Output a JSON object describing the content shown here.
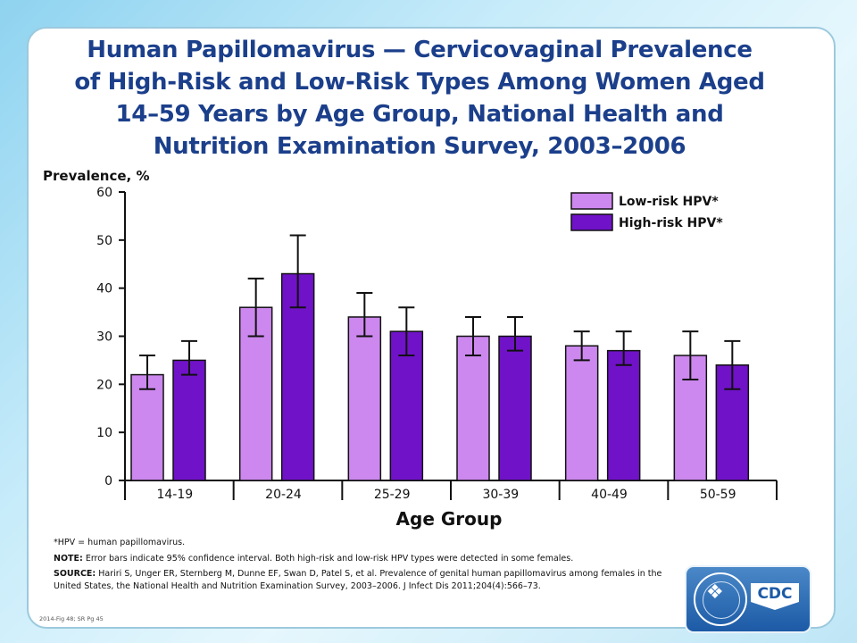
{
  "title_lines": [
    "Human Papillomavirus — Cervicovaginal Prevalence",
    "of High-Risk and Low-Risk Types Among Women Aged",
    "14–59 Years by Age Group, National Health and",
    "Nutrition Examination Survey, 2003–2006"
  ],
  "chart_data": {
    "type": "bar",
    "ylabel": "Prevalence, %",
    "xlabel": "Age Group",
    "ylim": [
      0,
      60
    ],
    "yticks": [
      0,
      10,
      20,
      30,
      40,
      50,
      60
    ],
    "grid": false,
    "legend_position": "top-right",
    "categories": [
      "14-19",
      "20-24",
      "25-29",
      "30-39",
      "40-49",
      "50-59"
    ],
    "series": [
      {
        "name": "Low-risk HPV*",
        "color": "#cc88ee",
        "values": [
          22,
          36,
          34,
          30,
          28,
          26
        ],
        "ci_low": [
          19,
          30,
          30,
          26,
          25,
          21
        ],
        "ci_high": [
          26,
          42,
          39,
          34,
          31,
          31
        ]
      },
      {
        "name": "High-risk HPV*",
        "color": "#7012c8",
        "values": [
          25,
          43,
          31,
          30,
          27,
          24
        ],
        "ci_low": [
          22,
          36,
          26,
          27,
          24,
          19
        ],
        "ci_high": [
          29,
          51,
          36,
          34,
          31,
          29
        ]
      }
    ]
  },
  "notes": {
    "footnote": "*HPV = human papillomavirus.",
    "note_label": "NOTE:",
    "note_text": " Error bars indicate 95% confidence interval. Both high-risk and low-risk HPV types were detected in some females.",
    "source_label": "SOURCE:",
    "source_text": " Hariri S, Unger ER, Sternberg M, Dunne EF, Swan D, Patel S, et al. Prevalence of genital human papillomavirus among females in the United States, the National Health and Nutrition Examination Survey, 2003–2006.  J Infect Dis 2011;204(4):566–73."
  },
  "footer_id": "2014-Fig 48; SR Pg 45",
  "logo": {
    "text": "CDC",
    "icon": "hhs-eagle-seal-icon"
  }
}
